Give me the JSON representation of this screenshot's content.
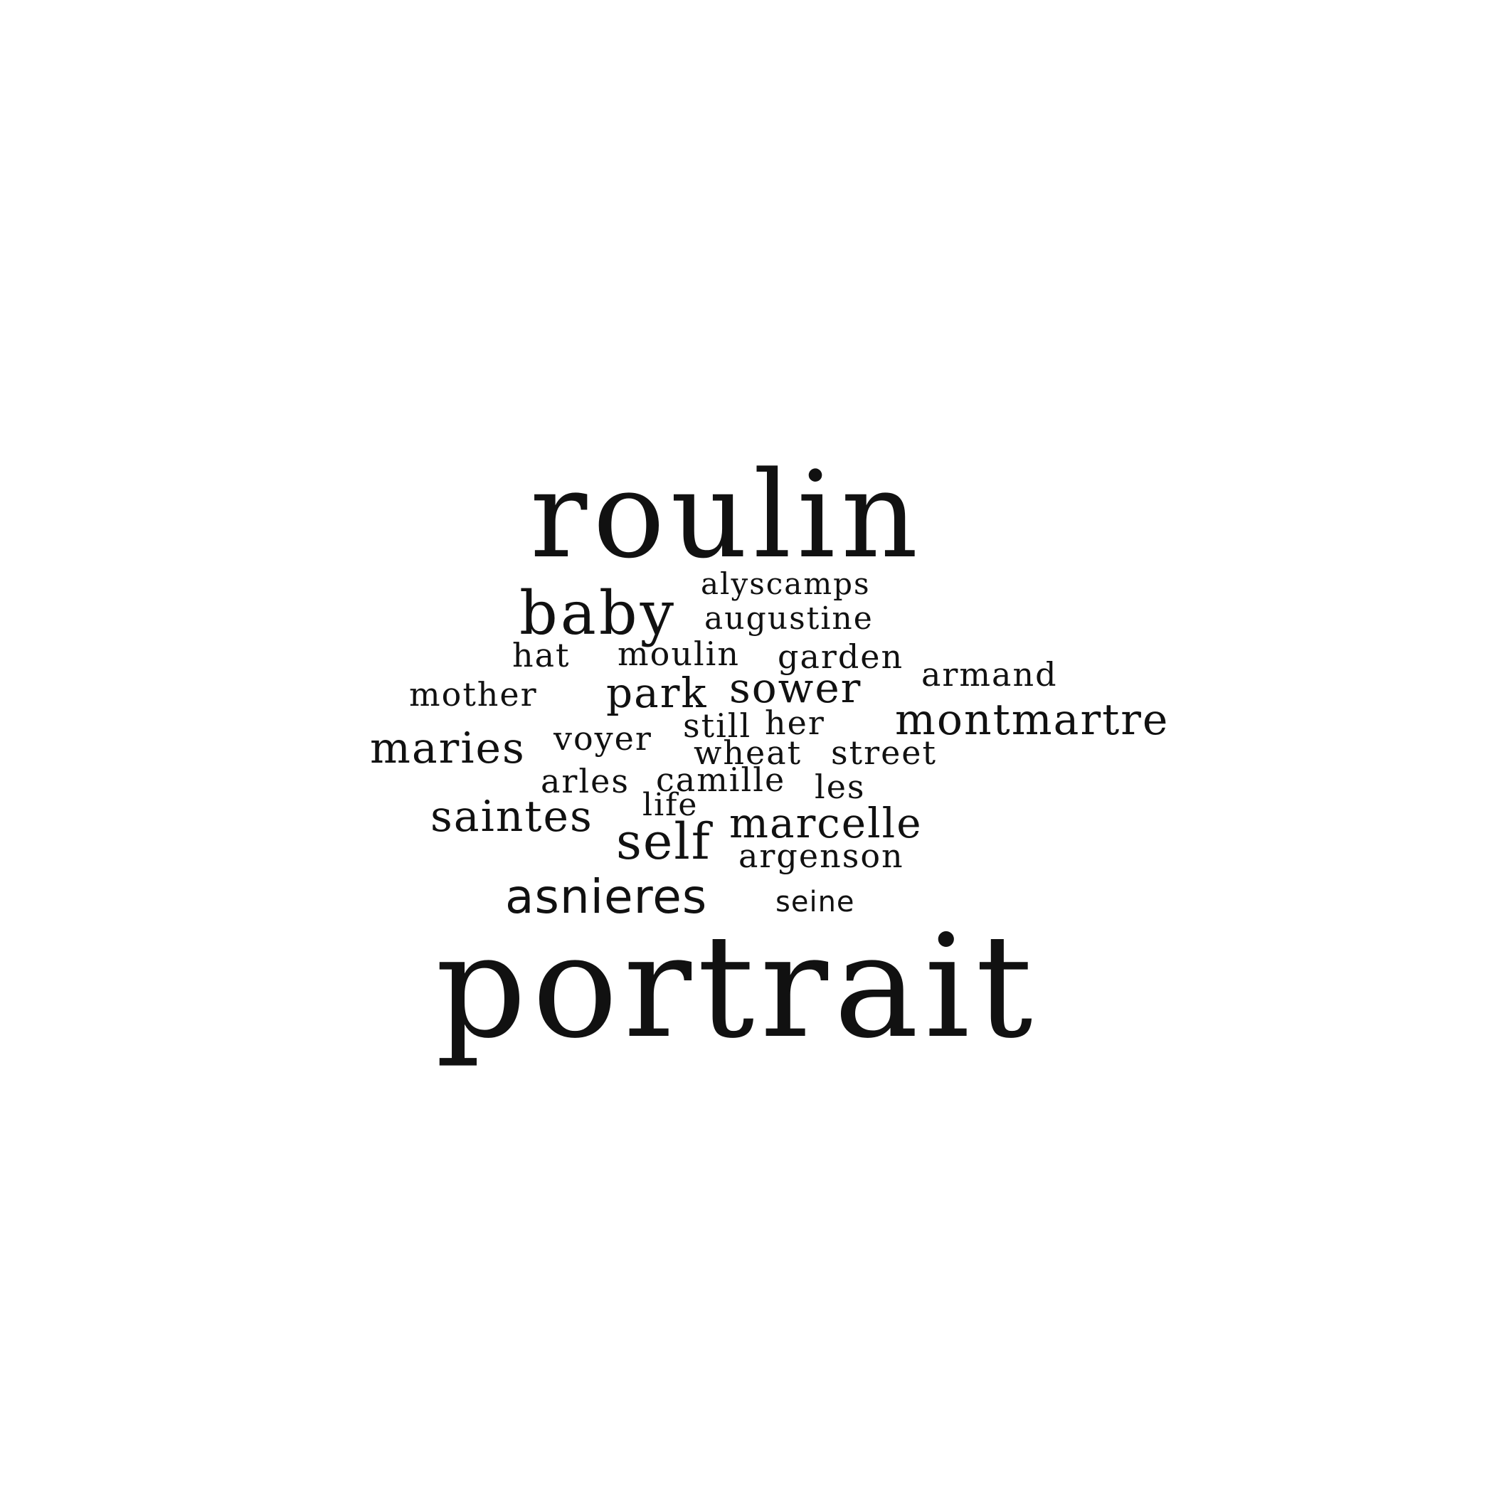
{
  "word_cloud": {
    "text_color": "#111111",
    "background_color": "#ffffff",
    "words": [
      "roulin",
      "baby",
      "alyscamps",
      "augustine",
      "hat",
      "moulin",
      "garden",
      "armand",
      "mother",
      "park",
      "sower",
      "montmartre",
      "still",
      "her",
      "maries",
      "voyer",
      "wheat",
      "street",
      "arles",
      "camille",
      "les",
      "saintes",
      "life",
      "marcelle",
      "self",
      "argenson",
      "asnieres",
      "seine",
      "portrait"
    ]
  }
}
